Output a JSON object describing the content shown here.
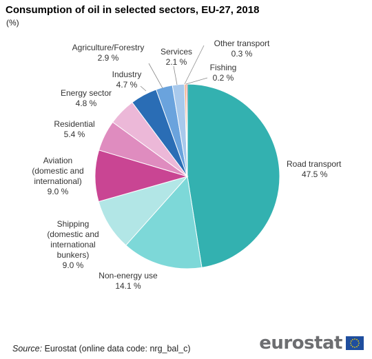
{
  "title": "Consumption of oil in selected sectors, EU-27, 2018",
  "subtitle": "(%)",
  "source": {
    "label": "Source:",
    "text": "Eurostat (online data code: nrg_bal_c)"
  },
  "logo_text": "eurostat",
  "colors": {
    "flag_bg": "#1f4e9e",
    "flag_stars": "#f5d300"
  },
  "chart_data": {
    "type": "pie",
    "unit": "%",
    "start": "12 o'clock, clockwise",
    "slices": [
      {
        "name": "Road transport",
        "value": 47.5,
        "label": "47.5 %",
        "color": "#33b1b0"
      },
      {
        "name": "Non-energy use",
        "value": 14.1,
        "label": "14.1 %",
        "color": "#7dd8d8"
      },
      {
        "name": "Shipping (domestic and international bunkers)",
        "value": 9.0,
        "label": "9.0 %",
        "color": "#b2e6e6"
      },
      {
        "name": "Aviation (domestic and international)",
        "value": 9.0,
        "label": "9.0 %",
        "color": "#c94593"
      },
      {
        "name": "Residential",
        "value": 5.4,
        "label": "5.4 %",
        "color": "#df8cbf"
      },
      {
        "name": "Energy sector",
        "value": 4.8,
        "label": "4.8 %",
        "color": "#ecb8d8"
      },
      {
        "name": "Industry",
        "value": 4.7,
        "label": "4.7 %",
        "color": "#2a6db5"
      },
      {
        "name": "Agriculture/Forestry",
        "value": 2.9,
        "label": "2.9 %",
        "color": "#6aa3dd"
      },
      {
        "name": "Services",
        "value": 2.1,
        "label": "2.1 %",
        "color": "#a8c9ec"
      },
      {
        "name": "Other transport",
        "value": 0.3,
        "label": "0.3 %",
        "color": "#f0a070"
      },
      {
        "name": "Fishing",
        "value": 0.2,
        "label": "0.2 %",
        "color": "#e0302b"
      }
    ]
  }
}
